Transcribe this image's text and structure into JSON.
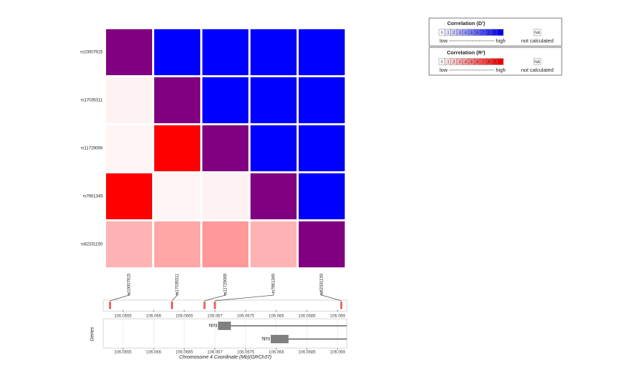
{
  "chart_data": {
    "type": "heatmap",
    "snps": [
      "rs10007915",
      "rs17035311",
      "rs11729069",
      "rs7661349",
      "rs62331150"
    ],
    "positions": [
      106.06529,
      106.0663,
      106.06683,
      106.067,
      106.06906
    ],
    "cells": [
      [
        1,
        1,
        1,
        1,
        1
      ],
      [
        0.05,
        1,
        1,
        1,
        1
      ],
      [
        0.04,
        1,
        1,
        1,
        1
      ],
      [
        1,
        0.04,
        0.05,
        1,
        1
      ],
      [
        0.3,
        0.35,
        0.4,
        0.3,
        1
      ]
    ],
    "legends": [
      {
        "title": "Correlation  (D')",
        "color": "#0000ff"
      },
      {
        "title": "Correlation  (R²)",
        "color": "#ff0000"
      }
    ],
    "legend_scale": [
      0,
      {
        "value": 0.1,
        "label": ".1"
      },
      {
        "value": 0.2,
        "label": ".2"
      },
      {
        "value": 0.3,
        "label": ".3"
      },
      {
        "value": 0.4,
        "label": ".4"
      },
      {
        "value": 0.5,
        "label": ".5"
      },
      {
        "value": 0.6,
        "label": ".6"
      },
      {
        "value": 0.7,
        "label": ".7"
      },
      {
        "value": 0.8,
        "label": ".8"
      },
      {
        "value": 0.9,
        "label": ".9"
      },
      1
    ],
    "legend_low_high": "low -------------------------- high",
    "na_label": "NA",
    "na_text": "not calculated",
    "diagonal_color": "#800080",
    "marker_color": "#e8605f",
    "xlim": [
      106.06518,
      106.06915
    ],
    "xticks": [
      106.0655,
      106.066,
      106.0665,
      106.067,
      106.0675,
      106.068,
      106.0685,
      106.069
    ],
    "genes_label": "Genes",
    "xlabel": "Chromosome 4 Coordinate (Mb)(GRCh37)",
    "genes": [
      {
        "name": "TET2",
        "start": 106.06705,
        "end": 106.06915,
        "exon": [
          106.06705,
          106.06726
        ]
      },
      {
        "name": "TET2",
        "start": 106.06791,
        "end": 106.06915,
        "exon": [
          106.06791,
          106.0682
        ]
      }
    ]
  }
}
